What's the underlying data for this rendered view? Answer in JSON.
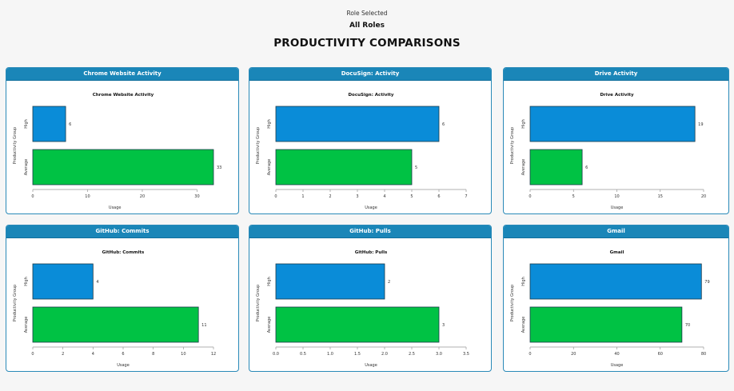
{
  "header": {
    "subtitle": "Role Selected",
    "role": "All Roles",
    "title": "PRODUCTIVITY COMPARISONS"
  },
  "colors": {
    "header_bar": "#1a86b8",
    "high": "#0a8cd8",
    "average": "#00c244",
    "bar_stroke": "#1b3a4a"
  },
  "panels": [
    {
      "heading": "Chrome Website Activity"
    },
    {
      "heading": "DocuSign: Activity"
    },
    {
      "heading": "Drive Activity"
    },
    {
      "heading": "GitHub: Commits"
    },
    {
      "heading": "GitHub: Pulls"
    },
    {
      "heading": "Gmail"
    }
  ],
  "chart_data": [
    {
      "type": "bar",
      "orientation": "horizontal",
      "title": "Chrome Website Activity",
      "xlabel": "Usage",
      "ylabel": "Productivity Group",
      "categories": [
        "High",
        "Average"
      ],
      "values": [
        6,
        33
      ],
      "value_labels": [
        "6",
        "33"
      ],
      "xlim": [
        0,
        33
      ],
      "ticks": [
        "0",
        "10",
        "20",
        "30"
      ],
      "tick_values": [
        0,
        10,
        20,
        30
      ]
    },
    {
      "type": "bar",
      "orientation": "horizontal",
      "title": "DocuSign: Activity",
      "xlabel": "Usage",
      "ylabel": "Productivity Group",
      "categories": [
        "High",
        "Average"
      ],
      "values": [
        6,
        5
      ],
      "value_labels": [
        "6",
        "5"
      ],
      "xlim": [
        0,
        7
      ],
      "ticks": [
        "0",
        "1",
        "2",
        "3",
        "4",
        "5",
        "6",
        "7"
      ],
      "tick_values": [
        0,
        1,
        2,
        3,
        4,
        5,
        6,
        7
      ]
    },
    {
      "type": "bar",
      "orientation": "horizontal",
      "title": "Drive Activity",
      "xlabel": "Usage",
      "ylabel": "Productivity Group",
      "categories": [
        "High",
        "Average"
      ],
      "values": [
        19,
        6
      ],
      "value_labels": [
        "19",
        "6"
      ],
      "xlim": [
        0,
        20
      ],
      "ticks": [
        "0",
        "5",
        "10",
        "15",
        "20"
      ],
      "tick_values": [
        0,
        5,
        10,
        15,
        20
      ]
    },
    {
      "type": "bar",
      "orientation": "horizontal",
      "title": "GitHub: Commits",
      "xlabel": "Usage",
      "ylabel": "Productivity Group",
      "categories": [
        "High",
        "Average"
      ],
      "values": [
        4,
        11
      ],
      "value_labels": [
        "4",
        "11"
      ],
      "xlim": [
        0,
        12
      ],
      "ticks": [
        "0",
        "2",
        "4",
        "6",
        "8",
        "10",
        "12"
      ],
      "tick_values": [
        0,
        2,
        4,
        6,
        8,
        10,
        12
      ]
    },
    {
      "type": "bar",
      "orientation": "horizontal",
      "title": "GitHub: Pulls",
      "xlabel": "Usage",
      "ylabel": "Productivity Group",
      "categories": [
        "High",
        "Average"
      ],
      "values": [
        2,
        3
      ],
      "value_labels": [
        "2",
        "3"
      ],
      "xlim": [
        0,
        3.5
      ],
      "ticks": [
        "0.0",
        "0.5",
        "1.0",
        "1.5",
        "2.0",
        "2.5",
        "3.0",
        "3.5"
      ],
      "tick_values": [
        0,
        0.5,
        1,
        1.5,
        2,
        2.5,
        3,
        3.5
      ]
    },
    {
      "type": "bar",
      "orientation": "horizontal",
      "title": "Gmail",
      "xlabel": "Usage",
      "ylabel": "Productivity Group",
      "categories": [
        "High",
        "Average"
      ],
      "values": [
        79,
        70
      ],
      "value_labels": [
        "79",
        "70"
      ],
      "xlim": [
        0,
        80
      ],
      "ticks": [
        "0",
        "20",
        "40",
        "60",
        "80"
      ],
      "tick_values": [
        0,
        20,
        40,
        60,
        80
      ]
    }
  ]
}
